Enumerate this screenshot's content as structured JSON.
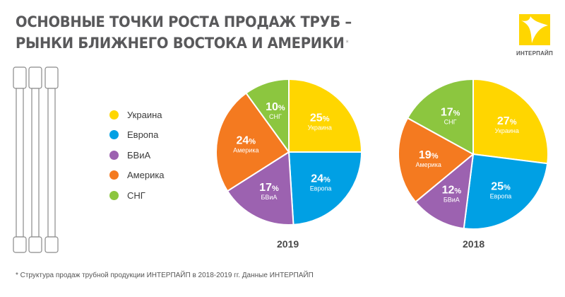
{
  "header": {
    "title_line1": "ОСНОВНЫЕ ТОЧКИ РОСТА ПРОДАЖ ТРУБ –",
    "title_line2": "РЫНКИ БЛИЖНЕГО ВОСТОКА И АМЕРИКИ",
    "title_mark": "*"
  },
  "logo": {
    "text": "ИНТЕРПАЙП",
    "color": "#FFD600"
  },
  "legend": [
    {
      "label": "Украина",
      "color": "#FFD600"
    },
    {
      "label": "Европа",
      "color": "#00A0E4"
    },
    {
      "label": "БВиА",
      "color": "#9C62B0"
    },
    {
      "label": "Америка",
      "color": "#F47A20"
    },
    {
      "label": "СНГ",
      "color": "#8CC63F"
    }
  ],
  "chart_data": [
    {
      "type": "pie",
      "title": "2019",
      "unit": "%",
      "slices": [
        {
          "label": "Украина",
          "value": 25,
          "color": "#FFD600"
        },
        {
          "label": "Европа",
          "value": 24,
          "color": "#00A0E4"
        },
        {
          "label": "БВиА",
          "value": 17,
          "color": "#9C62B0"
        },
        {
          "label": "Америка",
          "value": 24,
          "color": "#F47A20"
        },
        {
          "label": "СНГ",
          "value": 10,
          "color": "#8CC63F"
        }
      ]
    },
    {
      "type": "pie",
      "title": "2018",
      "unit": "%",
      "slices": [
        {
          "label": "Украина",
          "value": 27,
          "color": "#FFD600"
        },
        {
          "label": "Европа",
          "value": 25,
          "color": "#00A0E4"
        },
        {
          "label": "БВиА",
          "value": 12,
          "color": "#9C62B0"
        },
        {
          "label": "Америка",
          "value": 19,
          "color": "#F47A20"
        },
        {
          "label": "СНГ",
          "value": 17,
          "color": "#8CC63F"
        }
      ]
    }
  ],
  "footnote": "* Структура продаж трубной продукции ИНТЕРПАЙП в 2018-2019 гг. Данные ИНТЕРПАЙП"
}
